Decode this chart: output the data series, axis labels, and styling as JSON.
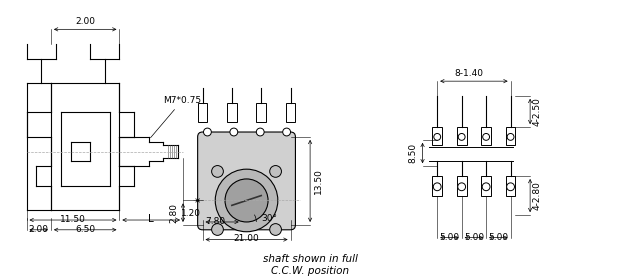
{
  "bg_color": "#ffffff",
  "line_color": "#000000",
  "dim_color": "#000000",
  "dash_color": "#aaaaaa",
  "title_bottom": "shaft shown in full\nC.C.W. position",
  "dims_left": {
    "11.50": [
      0.08,
      0.55,
      0.55,
      0.55
    ],
    "L": [
      0.55,
      0.87,
      0.87,
      0.87
    ],
    "2.00": [
      0.1,
      0.35,
      0.35,
      0.35
    ],
    "6.50": [
      0.35,
      0.55,
      0.55,
      0.55
    ],
    "2.00b": [
      0.35,
      0.55,
      0.0,
      0.0
    ],
    "M7*0.75": [
      0.55,
      0.78,
      0.3,
      0.3
    ]
  },
  "font_size_dim": 6.5,
  "font_size_label": 7.5
}
